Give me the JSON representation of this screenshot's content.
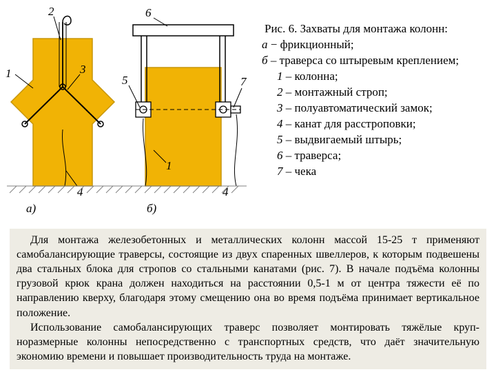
{
  "figure": {
    "colors": {
      "column": "#f1b305",
      "column_stroke": "#c7960a",
      "line": "#000000",
      "hatch": "#808080",
      "background": "#ffffff"
    },
    "labels": {
      "n1a": "1",
      "n2": "2",
      "n3": "3",
      "n4a": "4",
      "n5": "5",
      "n6": "6",
      "n7": "7",
      "n1b": "1",
      "n4b": "4",
      "a": "а)",
      "b": "б)"
    }
  },
  "caption": {
    "title": "Рис. 6. Захваты для монтажа колонн:",
    "lines": [
      {
        "it": "а",
        "rest": " − фрикционный;",
        "cls": ""
      },
      {
        "it": "б",
        "rest": " – траверса со штыревым креплением;",
        "cls": ""
      },
      {
        "it": "1",
        "rest": " – колонна;",
        "cls": "indent"
      },
      {
        "it": "2",
        "rest": " – монтажный строп;",
        "cls": "indent"
      },
      {
        "it": "3",
        "rest": " – полуавтоматический замок;",
        "cls": "indent"
      },
      {
        "it": "4",
        "rest": " – канат для расстроповки;",
        "cls": "indent"
      },
      {
        "it": "5",
        "rest": " – выдвигаемый штырь;",
        "cls": "indent"
      },
      {
        "it": "6",
        "rest": " – траверса;",
        "cls": "indent"
      },
      {
        "it": "7",
        "rest": " – чека",
        "cls": "indent"
      }
    ]
  },
  "body": {
    "p1": "Для монтажа железобетонных и металлических колонн массой 15-25 т применяют самобалансирующие траверсы, состоящие из двух спаренных швеллеров, к которым подвешены два стальных блока для стропов со стальными канатами (рис. 7). В начале подъёма колонны грузовой крюк крана должен находиться на расстоянии 0,5-1 м от центра тяжести её по направлению кверху, благодаря этому смещению она во время подъёма принимает вертикальное положение.",
    "p2": "Использование самобалансирующих траверс позволяет монтировать тяжёлые круп­норазмерные колонны непосредственно с транспортных средств, что даёт значитель­ную экономию времени и повышает производительность труда на монтаже."
  }
}
